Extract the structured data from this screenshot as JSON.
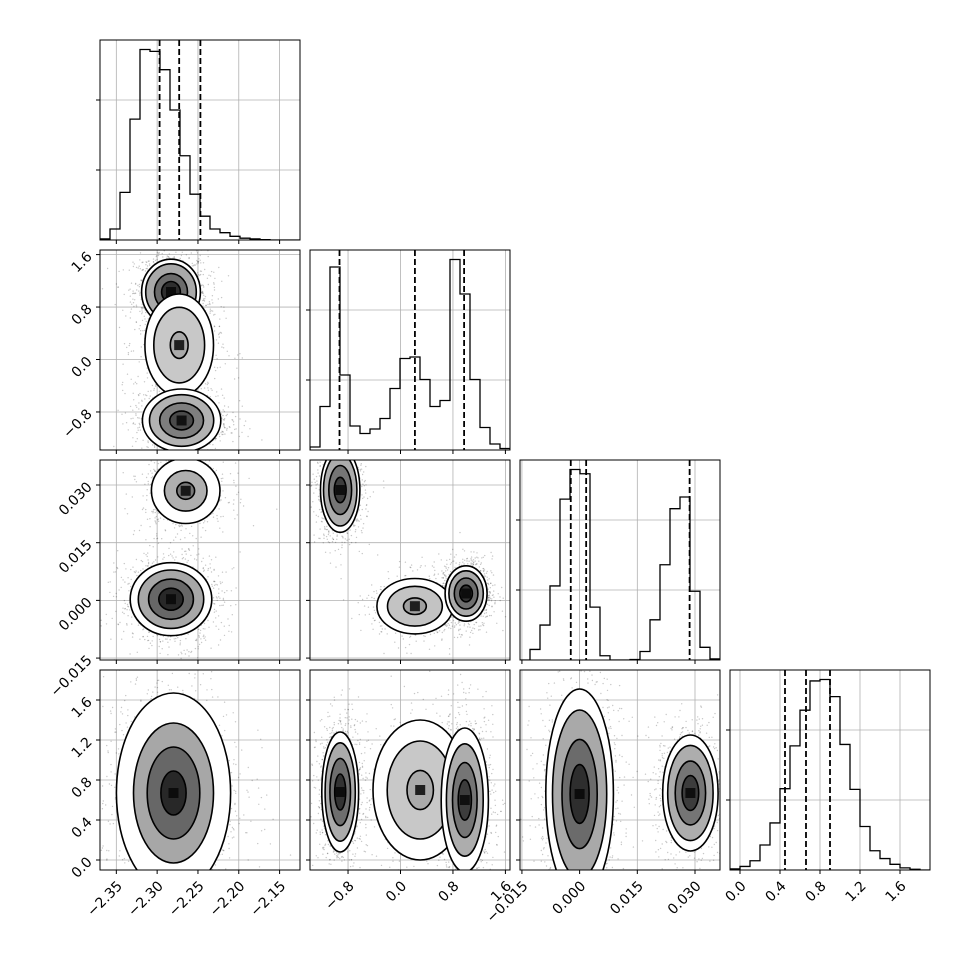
{
  "chart_data": {
    "type": "corner",
    "parameters": [
      {
        "index": 0,
        "range": [
          -2.37,
          -2.125
        ],
        "ticks": [
          -2.35,
          -2.3,
          -2.25,
          -2.2,
          -2.15
        ],
        "tick_labels": [
          "−2.35",
          "−2.30",
          "−2.25",
          "−2.20",
          "−2.15"
        ],
        "quantiles": [
          -2.297,
          -2.273,
          -2.247
        ]
      },
      {
        "index": 1,
        "range": [
          -1.38,
          1.67
        ],
        "ticks": [
          -0.8,
          0.0,
          0.8,
          1.6
        ],
        "tick_labels": [
          "−0.8",
          "0.0",
          "0.8",
          "1.6"
        ],
        "quantiles": [
          -0.93,
          0.22,
          0.97
        ]
      },
      {
        "index": 2,
        "range": [
          -0.0155,
          0.0365
        ],
        "ticks": [
          -0.015,
          0.0,
          0.015,
          0.03
        ],
        "tick_labels": [
          "−0.015",
          "0.000",
          "0.015",
          "0.030"
        ],
        "quantiles": [
          -0.0023,
          0.0017,
          0.0286
        ]
      },
      {
        "index": 3,
        "range": [
          -0.1,
          1.9
        ],
        "ticks": [
          0.0,
          0.4,
          0.8,
          1.2,
          1.6
        ],
        "tick_labels": [
          "0.0",
          "0.4",
          "0.8",
          "1.2",
          "1.6"
        ],
        "quantiles": [
          0.45,
          0.66,
          0.9
        ]
      }
    ],
    "histograms": [
      {
        "param": 0,
        "bins": 20,
        "counts": [
          3,
          30,
          130,
          330,
          520,
          515,
          465,
          355,
          230,
          125,
          65,
          30,
          20,
          10,
          5,
          3,
          1,
          0,
          0,
          0
        ]
      },
      {
        "param": 1,
        "bins": 20,
        "counts": [
          20,
          290,
          1220,
          500,
          160,
          110,
          140,
          210,
          410,
          610,
          620,
          470,
          290,
          330,
          1270,
          1040,
          470,
          150,
          40,
          10
        ]
      },
      {
        "param": 2,
        "bins": 20,
        "counts": [
          0,
          100,
          330,
          700,
          1520,
          1800,
          1760,
          500,
          40,
          0,
          0,
          5,
          80,
          380,
          900,
          1430,
          1540,
          650,
          120,
          10
        ]
      },
      {
        "param": 3,
        "bins": 20,
        "counts": [
          8,
          25,
          65,
          175,
          330,
          570,
          870,
          1120,
          1325,
          1335,
          1215,
          880,
          565,
          305,
          135,
          80,
          40,
          15,
          5,
          0
        ]
      }
    ],
    "blobs": [
      {
        "x_param": 0,
        "y_param": 1,
        "modes": [
          {
            "cx": -2.283,
            "cy": 1.03,
            "rx": 0.036,
            "ry": 0.5,
            "levels": [
              0.32,
              0.56,
              0.86,
              1.0
            ],
            "darkness": 0.92
          },
          {
            "cx": -2.273,
            "cy": 0.22,
            "rx": 0.042,
            "ry": 0.78,
            "levels": [
              0.26,
              0.74,
              1.0
            ],
            "darkness": 0.3
          },
          {
            "cx": -2.27,
            "cy": -0.93,
            "rx": 0.048,
            "ry": 0.48,
            "levels": [
              0.3,
              0.56,
              0.82,
              1.0
            ],
            "darkness": 0.78
          }
        ]
      },
      {
        "x_param": 0,
        "y_param": 2,
        "modes": [
          {
            "cx": -2.265,
            "cy": 0.0285,
            "rx": 0.042,
            "ry": 0.0085,
            "levels": [
              0.26,
              0.62,
              1.0
            ],
            "darkness": 0.55
          },
          {
            "cx": -2.283,
            "cy": 0.0003,
            "rx": 0.05,
            "ry": 0.0095,
            "levels": [
              0.3,
              0.55,
              0.8,
              1.0
            ],
            "darkness": 0.95
          }
        ]
      },
      {
        "x_param": 1,
        "y_param": 2,
        "modes": [
          {
            "cx": -0.92,
            "cy": 0.0287,
            "rx": 0.3,
            "ry": 0.011,
            "levels": [
              0.3,
              0.58,
              0.85,
              1.0
            ],
            "darkness": 0.85
          },
          {
            "cx": 0.22,
            "cy": -0.0015,
            "rx": 0.58,
            "ry": 0.0072,
            "levels": [
              0.3,
              0.72,
              1.0
            ],
            "darkness": 0.35
          },
          {
            "cx": 1.0,
            "cy": 0.0018,
            "rx": 0.32,
            "ry": 0.0072,
            "levels": [
              0.3,
              0.56,
              0.82,
              1.0
            ],
            "darkness": 0.9
          }
        ]
      },
      {
        "x_param": 0,
        "y_param": 3,
        "modes": [
          {
            "cx": -2.28,
            "cy": 0.67,
            "rx": 0.07,
            "ry": 1.0,
            "levels": [
              0.22,
              0.46,
              0.7,
              1.0
            ],
            "darkness": 0.95
          }
        ]
      },
      {
        "x_param": 1,
        "y_param": 3,
        "modes": [
          {
            "cx": -0.92,
            "cy": 0.68,
            "rx": 0.28,
            "ry": 0.6,
            "levels": [
              0.3,
              0.56,
              0.82,
              1.0
            ],
            "darkness": 0.9
          },
          {
            "cx": 0.3,
            "cy": 0.7,
            "rx": 0.72,
            "ry": 0.7,
            "levels": [
              0.28,
              0.7,
              1.0
            ],
            "darkness": 0.3
          },
          {
            "cx": 0.98,
            "cy": 0.6,
            "rx": 0.36,
            "ry": 0.72,
            "levels": [
              0.28,
              0.52,
              0.78,
              1.0
            ],
            "darkness": 0.85
          }
        ]
      },
      {
        "x_param": 2,
        "y_param": 3,
        "modes": [
          {
            "cx": 0.0,
            "cy": 0.66,
            "rx": 0.0088,
            "ry": 1.05,
            "levels": [
              0.28,
              0.52,
              0.8,
              1.0
            ],
            "darkness": 0.92
          },
          {
            "cx": 0.0288,
            "cy": 0.67,
            "rx": 0.0072,
            "ry": 0.58,
            "levels": [
              0.3,
              0.55,
              0.82,
              1.0
            ],
            "darkness": 0.85
          }
        ]
      }
    ],
    "grid": true,
    "legend": "none"
  }
}
